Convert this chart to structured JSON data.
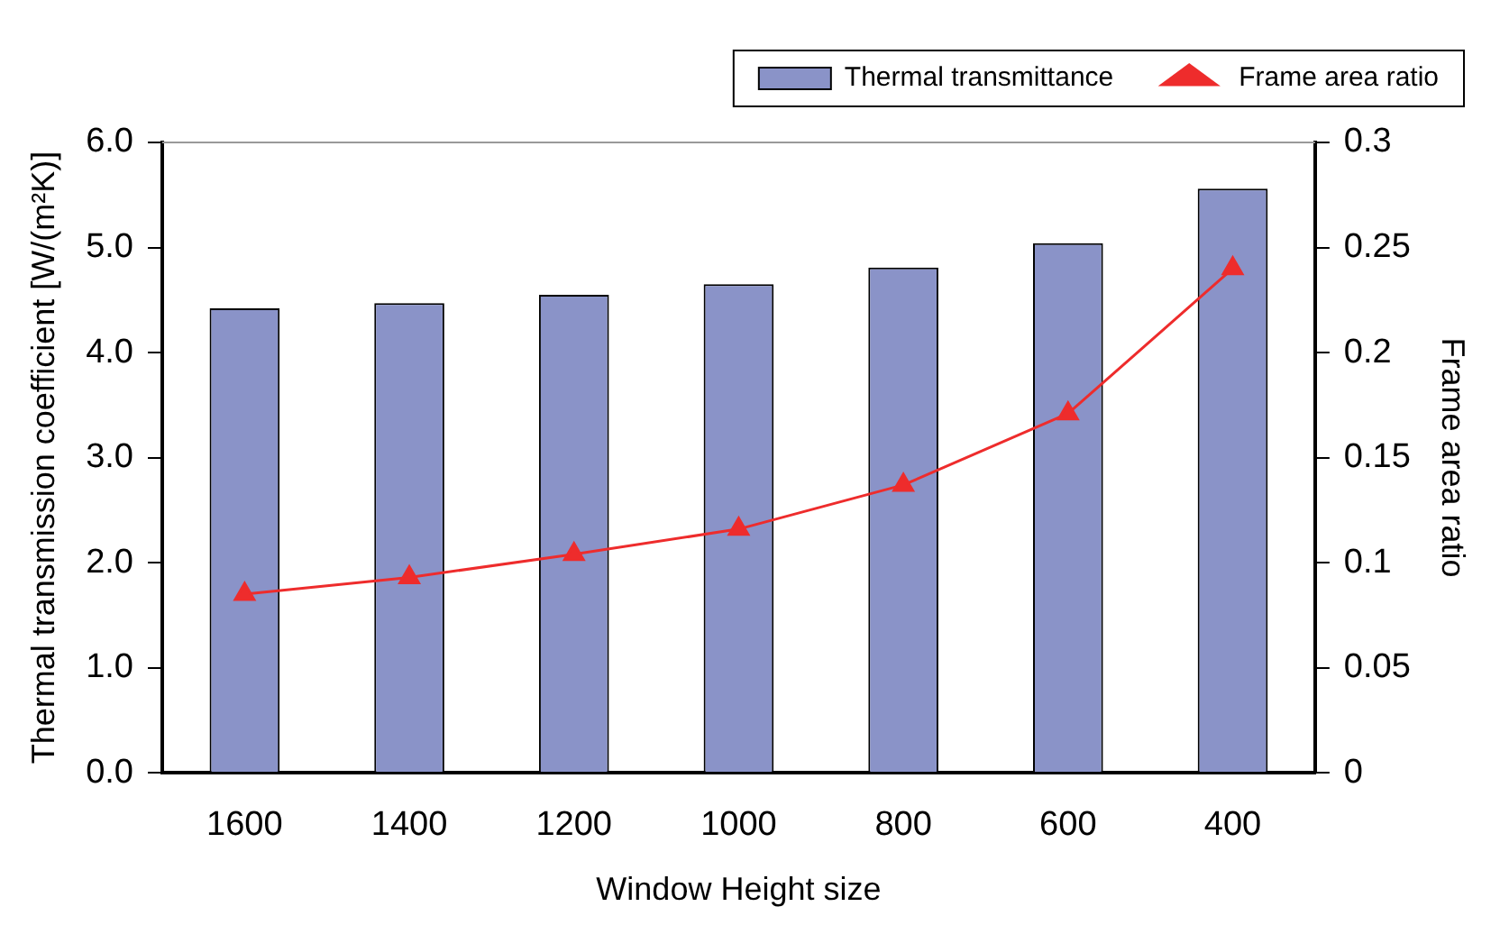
{
  "chart_data": {
    "type": "bar",
    "xlabel": "Window Height size",
    "ylabel": "Thermal transmission coefficient [W/(m²K)]",
    "y2label": "Frame area ratio",
    "categories": [
      "1600",
      "1400",
      "1200",
      "1000",
      "800",
      "600",
      "400"
    ],
    "series": [
      {
        "name": "Thermal transmittance",
        "color": "#8a93c8",
        "values": [
          4.42,
          4.47,
          4.55,
          4.65,
          4.81,
          5.04,
          5.56
        ]
      },
      {
        "name": "Frame area ratio",
        "type": "line",
        "axis": "y2",
        "color": "#ee2c2c",
        "marker": "triangle",
        "values": [
          0.085,
          0.093,
          0.104,
          0.116,
          0.137,
          0.171,
          0.24
        ]
      }
    ],
    "ylim": [
      0,
      6
    ],
    "yticks": [
      {
        "value": 0,
        "label": "0.0"
      },
      {
        "value": 1,
        "label": "1.0"
      },
      {
        "value": 2,
        "label": "2.0"
      },
      {
        "value": 3,
        "label": "3.0"
      },
      {
        "value": 4,
        "label": "4.0"
      },
      {
        "value": 5,
        "label": "5.0"
      },
      {
        "value": 6,
        "label": "6.0"
      }
    ],
    "y2lim": [
      0,
      0.3
    ],
    "y2ticks": [
      0,
      0.05,
      0.1,
      0.15,
      0.2,
      0.25,
      0.3
    ],
    "grid": false,
    "legend": "top right"
  }
}
